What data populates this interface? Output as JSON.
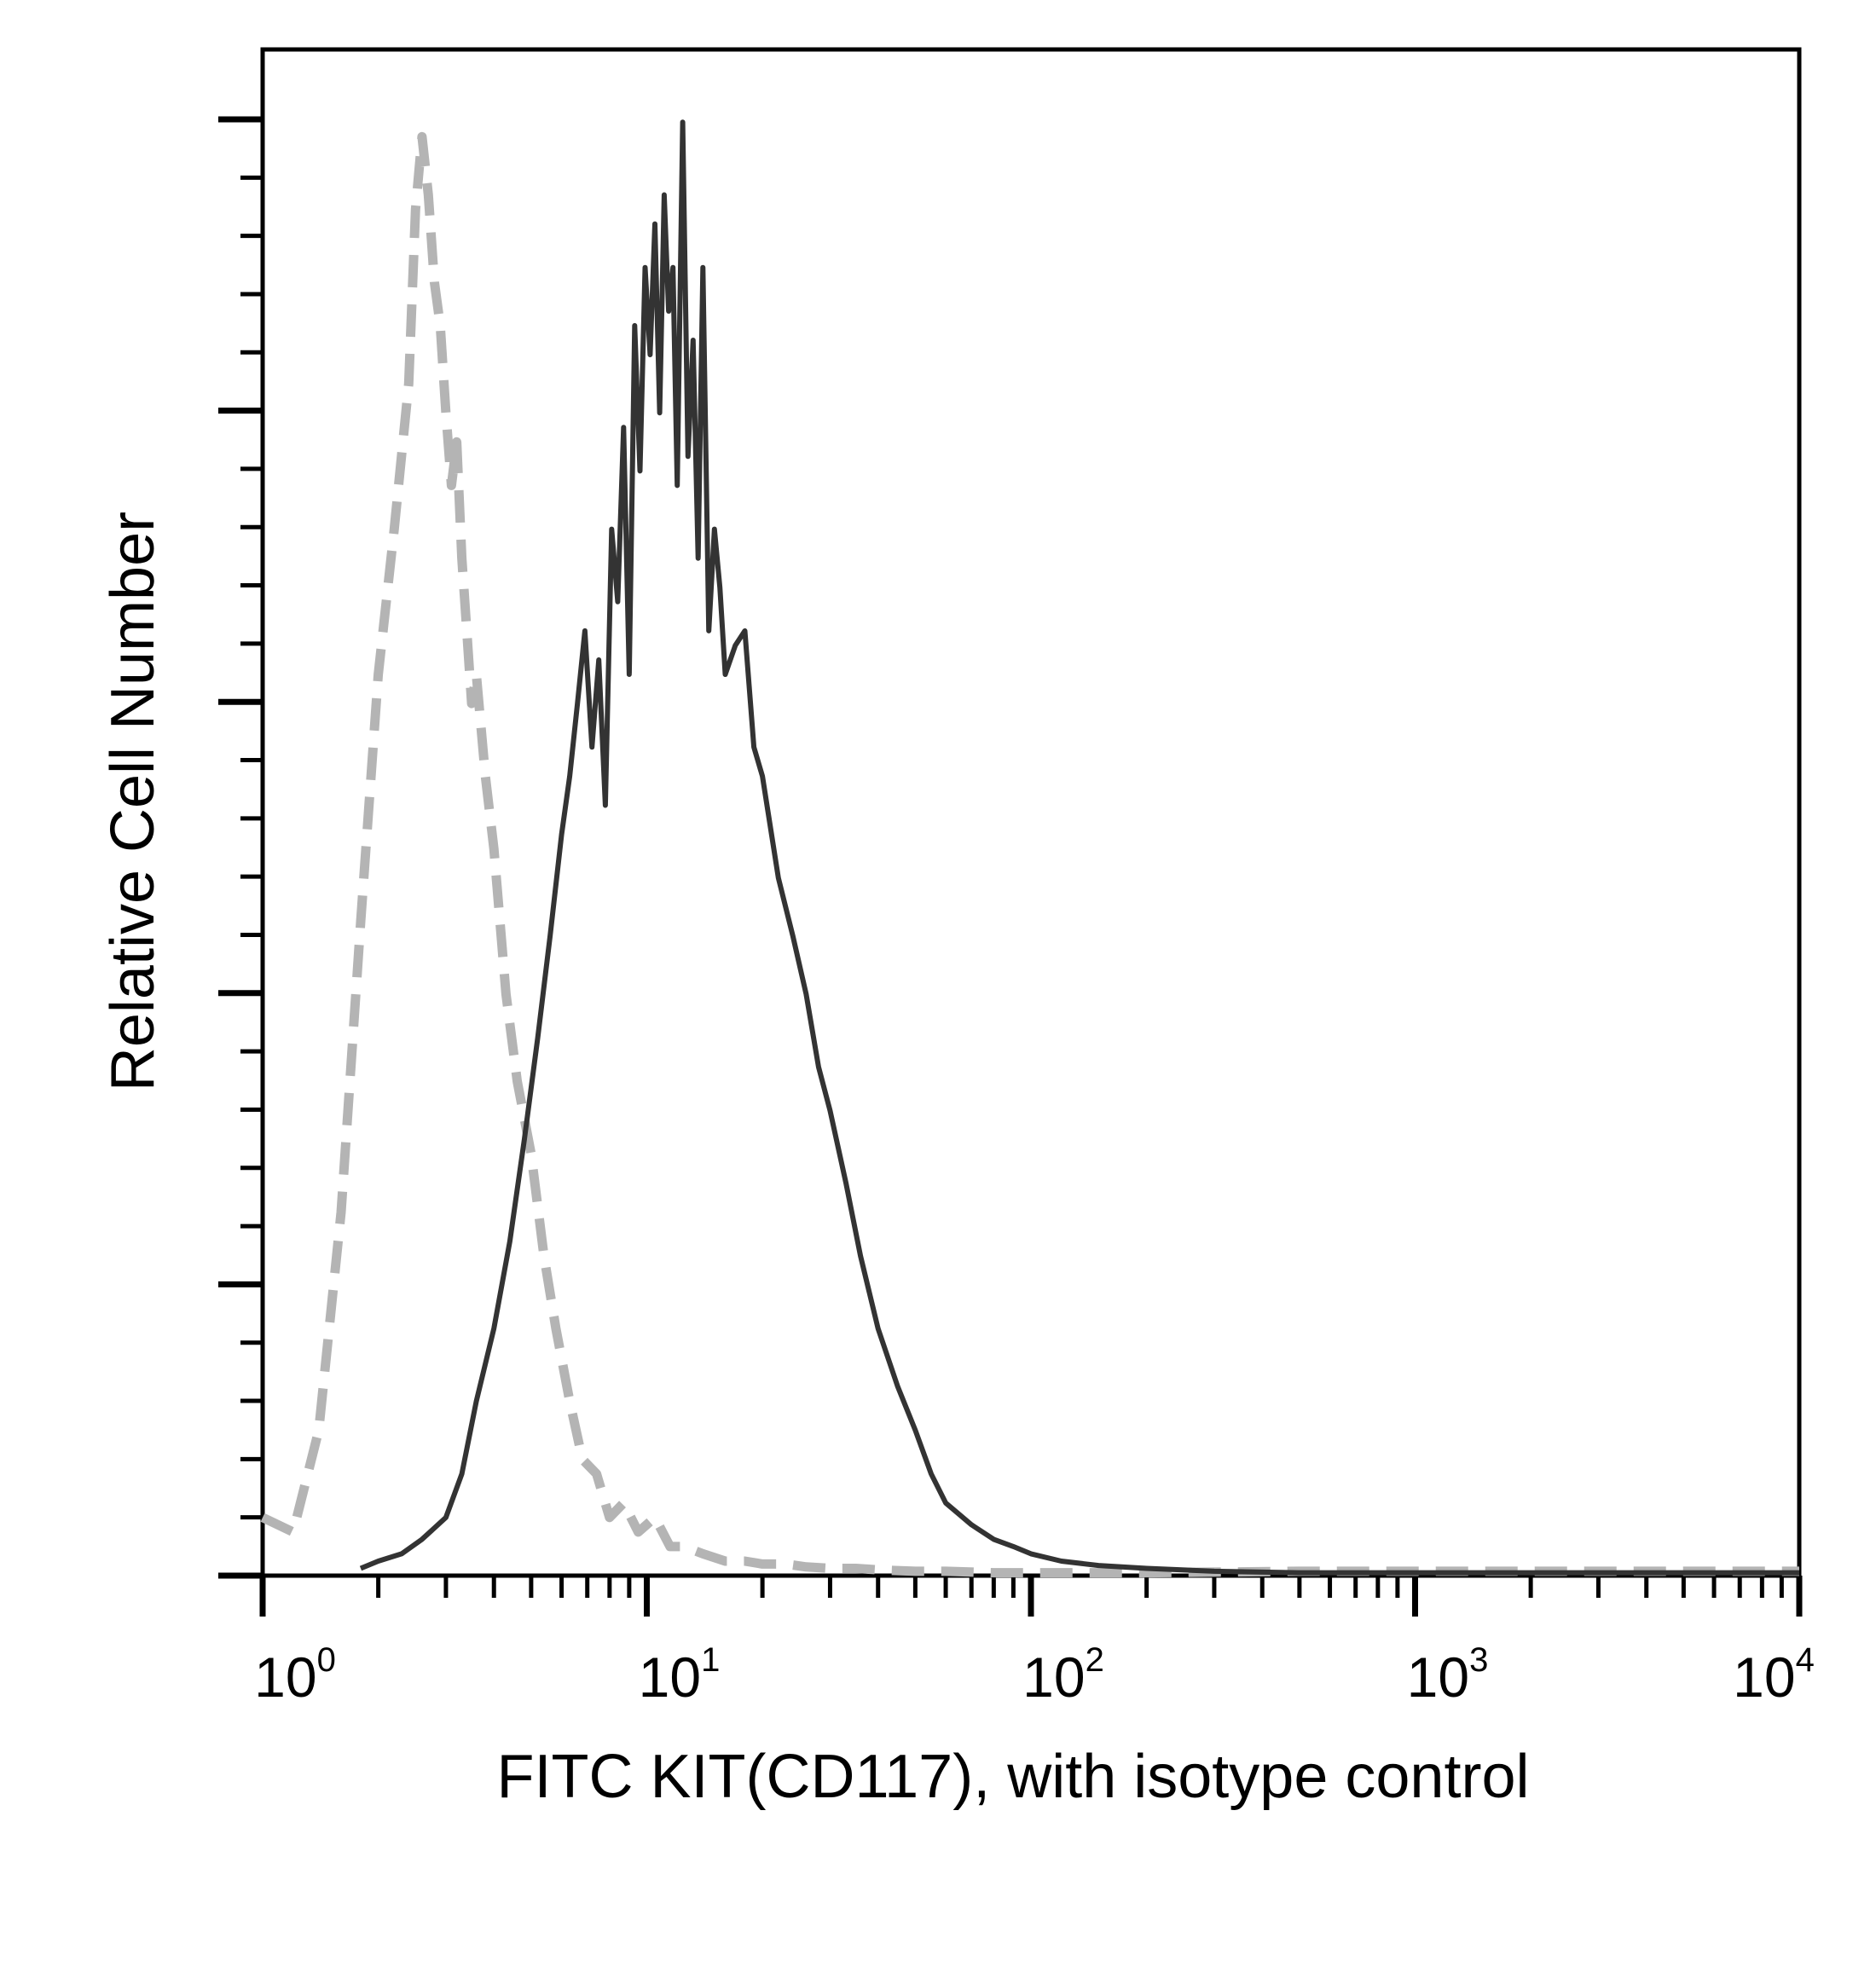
{
  "chart_data": {
    "type": "line",
    "title": "",
    "xlabel": "FITC KIT(CD117), with isotype control",
    "ylabel": "Relative Cell Number",
    "x_scale": "log",
    "xlim": [
      1,
      10000
    ],
    "ylim": [
      0,
      105
    ],
    "x_ticks": [
      {
        "value": 1,
        "base": "10",
        "exp": "0"
      },
      {
        "value": 10,
        "base": "10",
        "exp": "1"
      },
      {
        "value": 100,
        "base": "10",
        "exp": "2"
      },
      {
        "value": 1000,
        "base": "10",
        "exp": "3"
      },
      {
        "value": 10000,
        "base": "10",
        "exp": "4"
      }
    ],
    "y_tick_labels": false,
    "grid": false,
    "legend": "none",
    "series": [
      {
        "style": "dashed",
        "color": "#b4b4b4",
        "x": [
          1.0,
          1.2,
          1.4,
          1.6,
          1.8,
          2.0,
          2.2,
          2.4,
          2.5,
          2.6,
          2.7,
          2.8,
          2.9,
          3.0,
          3.1,
          3.2,
          3.3,
          3.4,
          3.5,
          3.6,
          3.8,
          4.0,
          4.3,
          4.6,
          5.0,
          5.4,
          5.8,
          6.3,
          6.8,
          7.4,
          8.0,
          8.7,
          9.5,
          10.5,
          11.5,
          12.5,
          14,
          16,
          18,
          20,
          23,
          26,
          30,
          35,
          40,
          50,
          60,
          80,
          100,
          200,
          500,
          1000,
          3000,
          10000
        ],
        "y": [
          4,
          3,
          10,
          25,
          45,
          62,
          72,
          82,
          94,
          99,
          95,
          89,
          86,
          80,
          75,
          78,
          70,
          65,
          60,
          62,
          55,
          50,
          40,
          34,
          29,
          22,
          17,
          12,
          8,
          7,
          4,
          5,
          3,
          4,
          2,
          2,
          1.5,
          1,
          1,
          0.8,
          0.8,
          0.6,
          0.5,
          0.5,
          0.4,
          0.3,
          0.3,
          0.2,
          0.2,
          0.2,
          0.3,
          0.3,
          0.3,
          0.3
        ]
      },
      {
        "style": "solid",
        "color": "#333333",
        "x": [
          1.8,
          2.0,
          2.3,
          2.6,
          3.0,
          3.3,
          3.6,
          4.0,
          4.4,
          4.8,
          5.2,
          5.6,
          6.0,
          6.3,
          6.6,
          6.9,
          7.2,
          7.5,
          7.8,
          8.1,
          8.4,
          8.7,
          9.0,
          9.3,
          9.6,
          9.9,
          10.2,
          10.5,
          10.8,
          11.1,
          11.4,
          11.7,
          12.0,
          12.4,
          12.8,
          13.2,
          13.6,
          14.0,
          14.5,
          15.0,
          15.5,
          16.0,
          17,
          18,
          19,
          20,
          22,
          24,
          26,
          28,
          30,
          33,
          36,
          40,
          45,
          50,
          55,
          60,
          70,
          80,
          90,
          100,
          120,
          150,
          200,
          300,
          500,
          1000,
          10000
        ],
        "y": [
          0.5,
          1,
          1.5,
          2.5,
          4,
          7,
          12,
          17,
          23,
          30,
          37,
          44,
          51,
          55,
          60,
          65,
          57,
          63,
          53,
          72,
          67,
          79,
          62,
          86,
          76,
          90,
          84,
          93,
          80,
          95,
          87,
          90,
          75,
          100,
          77,
          85,
          70,
          90,
          65,
          72,
          68,
          62,
          64,
          65,
          57,
          55,
          48,
          44,
          40,
          35,
          32,
          27,
          22,
          17,
          13,
          10,
          7,
          5,
          3.5,
          2.5,
          2,
          1.5,
          1,
          0.7,
          0.5,
          0.3,
          0.2,
          0.2,
          0.2
        ]
      }
    ]
  }
}
